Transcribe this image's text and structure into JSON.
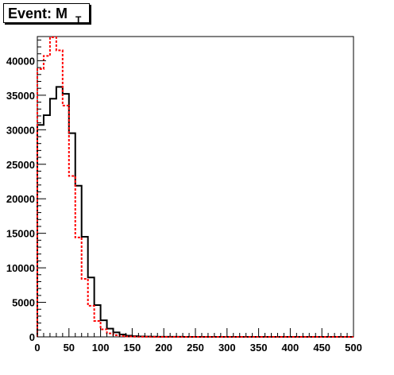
{
  "title": {
    "main": "Event: M",
    "sub": "T"
  },
  "chart_data": {
    "type": "histogram",
    "title": "Event: M_T",
    "xlabel": "",
    "ylabel": "",
    "xlim": [
      0,
      500
    ],
    "ylim": [
      0,
      43500
    ],
    "bin_width": 10,
    "bin_edges_start": 0,
    "x_ticks": [
      0,
      50,
      100,
      150,
      200,
      250,
      300,
      350,
      400,
      450,
      500
    ],
    "y_ticks": [
      0,
      5000,
      10000,
      15000,
      20000,
      25000,
      30000,
      35000,
      40000
    ],
    "grid": false,
    "legend": "none",
    "series": [
      {
        "style": "solid",
        "color": "#000000",
        "values": [
          30700,
          32100,
          34500,
          36200,
          35200,
          29500,
          21900,
          14500,
          8600,
          4600,
          2400,
          1200,
          650,
          350,
          180,
          100,
          60,
          40,
          30,
          20,
          15,
          10,
          8,
          6,
          5,
          4,
          3,
          3,
          2,
          2,
          2,
          1,
          1,
          1,
          1,
          1,
          1,
          1,
          0,
          0,
          0,
          0,
          0,
          0,
          0,
          0,
          0,
          0,
          0,
          0
        ]
      },
      {
        "style": "dotted",
        "color": "#ff0000",
        "values": [
          38800,
          40700,
          43400,
          41500,
          33500,
          23300,
          14400,
          8400,
          4500,
          2300,
          1100,
          500,
          250,
          120,
          60,
          30,
          15,
          8,
          5,
          3,
          2,
          2,
          1,
          1,
          1,
          1,
          0,
          0,
          0,
          0,
          0,
          0,
          0,
          0,
          0,
          0,
          0,
          0,
          0,
          0,
          0,
          0,
          0,
          0,
          0,
          0,
          0,
          0,
          0,
          0
        ]
      }
    ]
  }
}
